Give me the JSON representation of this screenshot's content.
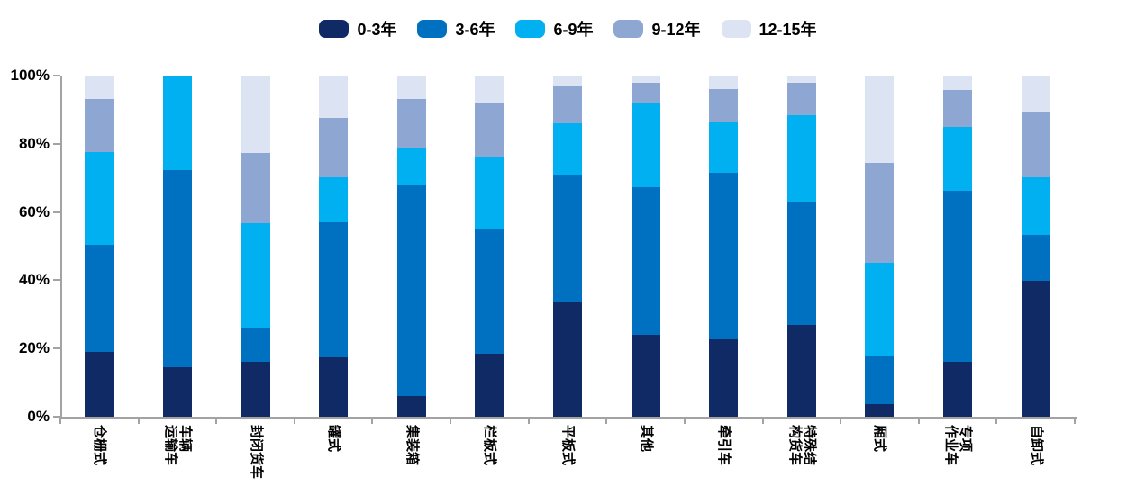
{
  "chart_data": {
    "type": "bar",
    "variant": "stacked-100-percent-column",
    "title": "",
    "legend_position": "top",
    "grid": false,
    "axis_color": "#a3a3a3",
    "text_color": "#000000",
    "background_color": "#ffffff",
    "y_axis": {
      "min": 0,
      "max": 100,
      "tick_step": 20,
      "tick_labels": [
        "0%",
        "20%",
        "40%",
        "60%",
        "80%",
        "100%"
      ]
    },
    "categories": [
      {
        "name": "仓栅式",
        "lines": [
          "仓栅式"
        ]
      },
      {
        "name": "车辆运输车",
        "lines": [
          "车辆",
          "运输车"
        ]
      },
      {
        "name": "封闭货车",
        "lines": [
          "封闭货车"
        ]
      },
      {
        "name": "罐式",
        "lines": [
          "罐式"
        ]
      },
      {
        "name": "集装箱",
        "lines": [
          "集装箱"
        ]
      },
      {
        "name": "栏板式",
        "lines": [
          "栏板式"
        ]
      },
      {
        "name": "平板式",
        "lines": [
          "平板式"
        ]
      },
      {
        "name": "其他",
        "lines": [
          "其他"
        ]
      },
      {
        "name": "牵引车",
        "lines": [
          "牵引车"
        ]
      },
      {
        "name": "特殊结构货车",
        "lines": [
          "特殊结",
          "构货车"
        ]
      },
      {
        "name": "厢式",
        "lines": [
          "厢式"
        ]
      },
      {
        "name": "专项作业车",
        "lines": [
          "专项",
          "作业车"
        ]
      },
      {
        "name": "自卸式",
        "lines": [
          "自卸式"
        ]
      }
    ],
    "series": [
      {
        "name": "0-3年",
        "color": "#0f2a64",
        "values": [
          19.0,
          14.4,
          16.0,
          17.3,
          6.1,
          18.4,
          33.4,
          23.9,
          22.6,
          27.0,
          3.7,
          16.0,
          39.9
        ]
      },
      {
        "name": "3-6年",
        "color": "#0070c0",
        "values": [
          31.5,
          57.8,
          10.1,
          39.7,
          61.8,
          36.4,
          37.5,
          43.3,
          49.0,
          36.0,
          14.0,
          50.2,
          13.4
        ]
      },
      {
        "name": "6-9年",
        "color": "#00b0f0",
        "values": [
          27.2,
          27.8,
          30.6,
          13.2,
          10.8,
          21.1,
          15.2,
          24.7,
          14.7,
          25.3,
          27.4,
          18.8,
          16.9
        ]
      },
      {
        "name": "9-12年",
        "color": "#8ea6d2",
        "values": [
          15.5,
          0.0,
          20.6,
          17.4,
          14.4,
          16.2,
          10.7,
          6.1,
          9.7,
          9.5,
          29.2,
          10.8,
          19.0
        ]
      },
      {
        "name": "12-15年",
        "color": "#dce3f2",
        "values": [
          6.8,
          0.0,
          22.7,
          12.4,
          6.9,
          7.9,
          3.2,
          2.0,
          4.0,
          2.2,
          25.7,
          4.2,
          10.8
        ]
      }
    ]
  }
}
